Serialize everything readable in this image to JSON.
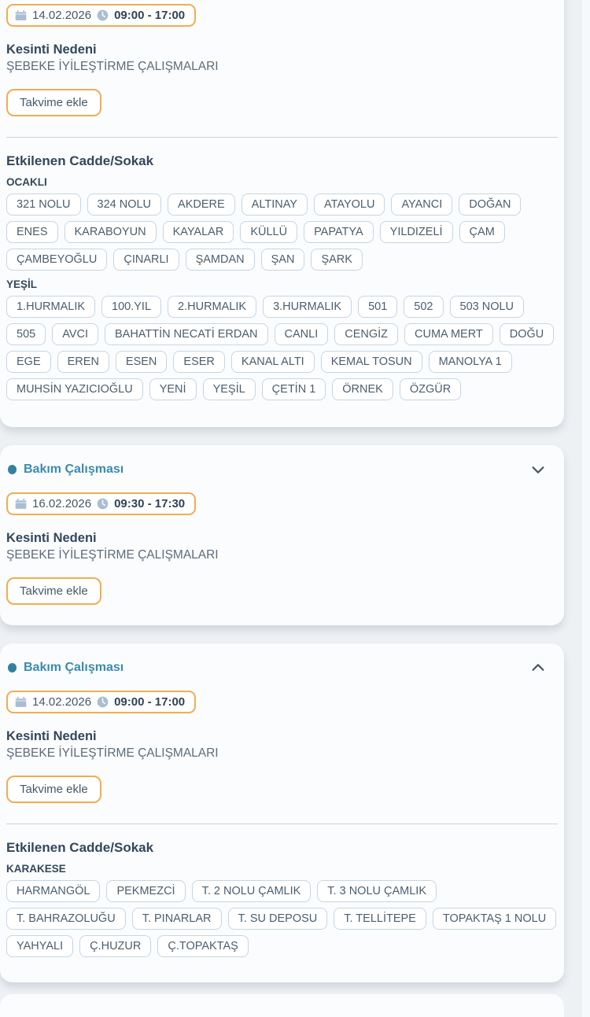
{
  "labels": {
    "reason_title": "Kesinti Nedeni",
    "add_to_calendar": "Takvime ekle",
    "affected_title": "Etkilenen Cadde/Sokak"
  },
  "colors": {
    "accent_teal": "#3a8cad",
    "badge_border_orange": "#f0ad52",
    "chip_border": "#c5d6e4",
    "heading_text": "#33475a",
    "body_text": "#5c6c7a",
    "icon_slate": "#a9bed2",
    "chevron": "#4a5563",
    "page_background": "#eef1f4",
    "card_background": "#fbfcfe"
  },
  "cards": [
    {
      "date": "14.02.2026",
      "time": "09:00 - 17:00",
      "reason": "ŞEBEKE İYİLEŞTİRME ÇALIŞMALARI",
      "groups": [
        {
          "name": "OCAKLI",
          "streets": [
            "321 NOLU",
            "324 NOLU",
            "AKDERE",
            "ALTINAY",
            "ATAYOLU",
            "AYANCI",
            "DOĞAN",
            "ENES",
            "KARABOYUN",
            "KAYALAR",
            "KÜLLÜ",
            "PAPATYA",
            "YILDIZELİ",
            "ÇAM",
            "ÇAMBEYOĞLU",
            "ÇINARLI",
            "ŞAMDAN",
            "ŞAN",
            "ŞARK"
          ]
        },
        {
          "name": "YEŞİL",
          "streets": [
            "1.HURMALIK",
            "100.YIL",
            "2.HURMALIK",
            "3.HURMALIK",
            "501",
            "502",
            "503 NOLU",
            "505",
            "AVCI",
            "BAHATTİN NECATİ ERDAN",
            "CANLI",
            "CENGİZ",
            "CUMA MERT",
            "DOĞU",
            "EGE",
            "EREN",
            "ESEN",
            "ESER",
            "KANAL ALTI",
            "KEMAL TOSUN",
            "MANOLYA 1",
            "MUHSİN YAZICIOĞLU",
            "YENİ",
            "YEŞİL",
            "ÇETİN 1",
            "ÖRNEK",
            "ÖZGÜR"
          ]
        }
      ]
    },
    {
      "title": "Bakım Çalışması",
      "date": "16.02.2026",
      "time": "09:30 - 17:30",
      "reason": "ŞEBEKE İYİLEŞTİRME ÇALIŞMALARI",
      "collapsed": true,
      "groups": []
    },
    {
      "title": "Bakım Çalışması",
      "date": "14.02.2026",
      "time": "09:00 - 17:00",
      "reason": "ŞEBEKE İYİLEŞTİRME ÇALIŞMALARI",
      "collapsed": false,
      "groups": [
        {
          "name": "KARAKESE",
          "streets": [
            "HARMANGÖL",
            "PEKMEZCİ",
            "T. 2 NOLU ÇAMLIK",
            "T. 3 NOLU ÇAMLIK",
            "T. BAHRAZOLUĞU",
            "T. PINARLAR",
            "T. SU DEPOSU",
            "T. TELLİTEPE",
            "TOPAKTAŞ 1 NOLU",
            "YAHYALI",
            "Ç.HUZUR",
            "Ç.TOPAKTAŞ"
          ]
        }
      ]
    }
  ]
}
